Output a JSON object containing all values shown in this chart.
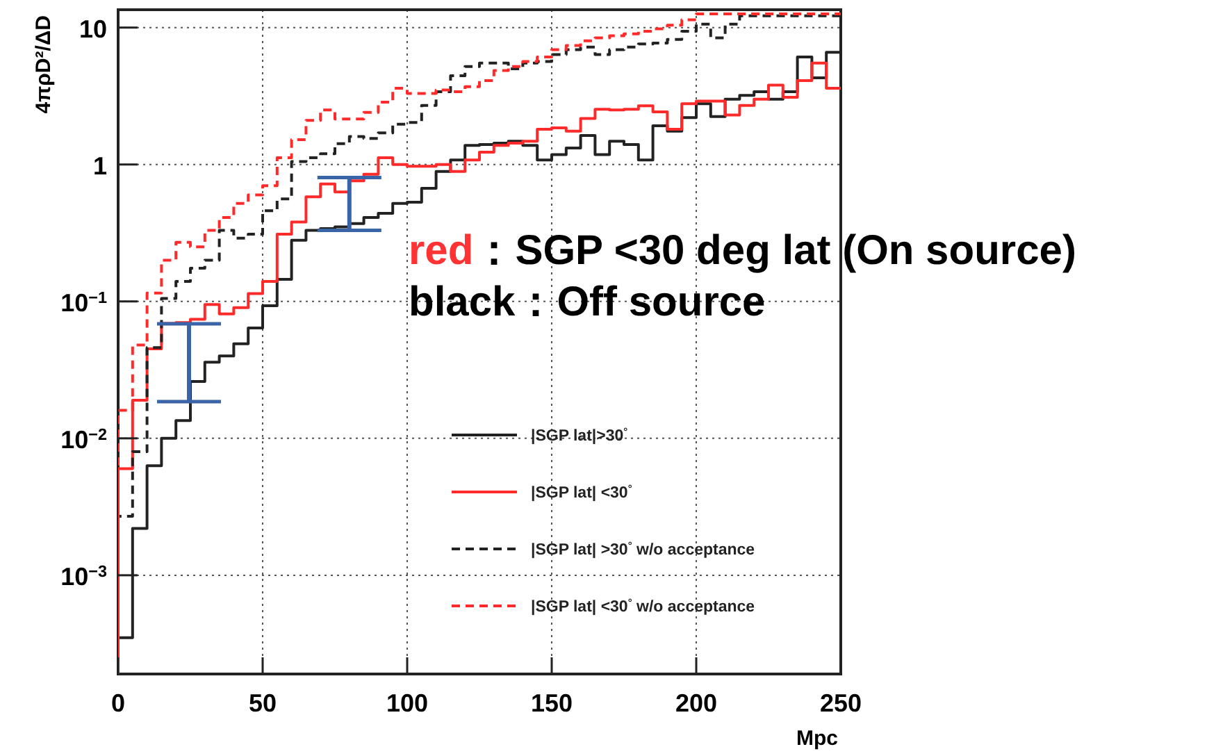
{
  "chart_data": {
    "type": "histogram",
    "xlabel": "Mpc",
    "ylabel": "4πρD²/ΔD",
    "bins": [
      0,
      5,
      10,
      15,
      20,
      25,
      30,
      35,
      40,
      45,
      50,
      55,
      60,
      65,
      70,
      75,
      80,
      85,
      90,
      95,
      100,
      105,
      110,
      115,
      120,
      125,
      130,
      135,
      140,
      145,
      150,
      155,
      160,
      165,
      170,
      175,
      180,
      185,
      190,
      195,
      200,
      205,
      210,
      215,
      220,
      225,
      230,
      235,
      240,
      245,
      250
    ],
    "series": [
      {
        "name": "|SGP lat|>30$^{°}$",
        "color": "#222222",
        "line_style": "solid",
        "values": [
          0.00035,
          0.0022,
          0.0063,
          0.01,
          0.0135,
          0.026,
          0.036,
          0.04,
          0.049,
          0.064,
          0.093,
          0.145,
          0.28,
          0.33,
          0.34,
          0.35,
          0.37,
          0.41,
          0.44,
          0.52,
          0.53,
          0.67,
          0.89,
          1.08,
          1.38,
          1.4,
          1.43,
          1.48,
          1.38,
          1.08,
          1.18,
          1.32,
          1.63,
          1.18,
          1.48,
          1.4,
          1.08,
          1.92,
          1.75,
          2.2,
          2.78,
          2.24,
          3.0,
          3.2,
          3.4,
          3.0,
          3.4,
          6.1,
          4.3,
          6.6
        ]
      },
      {
        "name": "|SGP lat| <30$^{°}$",
        "color": "#ff2a2a",
        "line_style": "solid",
        "values": [
          0.006,
          0.019,
          0.045,
          0.069,
          0.07,
          0.074,
          0.095,
          0.081,
          0.09,
          0.114,
          0.14,
          0.31,
          0.38,
          0.58,
          0.72,
          0.63,
          0.76,
          0.85,
          1.12,
          1.0,
          0.97,
          0.97,
          1.0,
          0.89,
          1.08,
          1.23,
          1.38,
          1.43,
          1.48,
          1.81,
          1.85,
          1.75,
          2.17,
          2.53,
          2.5,
          2.53,
          2.68,
          2.42,
          1.81,
          2.78,
          2.9,
          2.9,
          2.3,
          2.7,
          3.0,
          3.8,
          3.1,
          4.1,
          5.5,
          3.6
        ]
      },
      {
        "name": "|SGP lat| >30$^{°}$ w/o acceptance",
        "color": "#222222",
        "line_style": "dashed",
        "values": [
          0.0027,
          0.008,
          0.046,
          0.105,
          0.14,
          0.175,
          0.2,
          0.33,
          0.29,
          0.31,
          0.46,
          0.56,
          1.05,
          1.12,
          1.2,
          1.42,
          1.6,
          1.55,
          1.7,
          1.97,
          2.03,
          2.7,
          3.4,
          4.45,
          5.2,
          5.5,
          5.5,
          5.0,
          5.5,
          5.65,
          6.35,
          6.9,
          7.2,
          6.35,
          6.9,
          7.2,
          7.6,
          7.7,
          8.2,
          9.4,
          10.6,
          8.4,
          10.6,
          12.2,
          12.2,
          12.2,
          12.2,
          12.2,
          12.2,
          12.2
        ]
      },
      {
        "name": "|SGP lat| <30$^{°}$ w/o acceptance",
        "color": "#ff2a2a",
        "line_style": "dashed",
        "values": [
          0.016,
          0.048,
          0.115,
          0.2,
          0.27,
          0.25,
          0.33,
          0.41,
          0.52,
          0.6,
          0.7,
          1.12,
          1.52,
          2.1,
          2.5,
          2.15,
          2.15,
          2.4,
          2.85,
          3.6,
          3.3,
          3.3,
          3.5,
          3.4,
          3.7,
          4.1,
          4.85,
          5.2,
          5.65,
          6.1,
          6.9,
          7.4,
          8.0,
          8.4,
          8.7,
          9.0,
          9.4,
          9.8,
          10.4,
          11.4,
          12.6,
          12.6,
          12.6,
          12.6,
          12.6,
          12.6,
          12.6,
          12.6,
          12.6,
          12.6
        ]
      }
    ],
    "xlim": [
      0,
      250
    ],
    "xticks": [
      0,
      50,
      100,
      150,
      200,
      250
    ],
    "ylim": [
      0.00019,
      13.5
    ],
    "yticks": [
      {
        "value": 0.001,
        "label": "10$^{−3}$"
      },
      {
        "value": 0.01,
        "label": "10$^{−2}$"
      },
      {
        "value": 0.1,
        "label": "10$^{−1}$"
      },
      1,
      10
    ],
    "log": true,
    "grid": true,
    "legend": "bottom right",
    "annotations": [
      {
        "text": "red：SGP <30 deg lat (On source)",
        "x": 80,
        "y": 0.33
      },
      "black：Off source"
    ]
  }
}
